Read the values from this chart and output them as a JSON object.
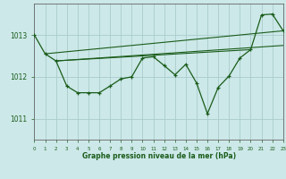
{
  "title": "Graphe pression niveau de la mer (hPa)",
  "bg_color": "#cce8e8",
  "grid_color": "#aacccc",
  "line_color": "#1a5c1a",
  "x_min": 0,
  "x_max": 23,
  "y_min": 1010.5,
  "y_max": 1013.75,
  "yticks": [
    1011,
    1012,
    1013
  ],
  "xtick_labels": [
    "0",
    "1",
    "2",
    "3",
    "4",
    "5",
    "6",
    "7",
    "8",
    "9",
    "10",
    "11",
    "12",
    "13",
    "14",
    "15",
    "16",
    "17",
    "18",
    "19",
    "20",
    "21",
    "22",
    "23"
  ],
  "series1": [
    [
      0,
      1013.0
    ],
    [
      1,
      1012.55
    ],
    [
      2,
      1012.38
    ],
    [
      3,
      1011.78
    ],
    [
      4,
      1011.62
    ],
    [
      5,
      1011.62
    ],
    [
      6,
      1011.62
    ],
    [
      7,
      1011.78
    ],
    [
      8,
      1011.95
    ],
    [
      9,
      1012.0
    ],
    [
      10,
      1012.45
    ],
    [
      11,
      1012.48
    ],
    [
      12,
      1012.27
    ],
    [
      13,
      1012.05
    ],
    [
      14,
      1012.3
    ],
    [
      15,
      1011.85
    ],
    [
      16,
      1011.12
    ],
    [
      17,
      1011.75
    ],
    [
      18,
      1012.02
    ],
    [
      19,
      1012.45
    ],
    [
      20,
      1012.65
    ],
    [
      21,
      1013.48
    ],
    [
      22,
      1013.5
    ],
    [
      23,
      1013.1
    ]
  ],
  "trend1_x": [
    1,
    23
  ],
  "trend1_y": [
    1012.55,
    1013.1
  ],
  "trend2_x": [
    2,
    20
  ],
  "trend2_y": [
    1012.38,
    1012.65
  ],
  "trend3_x": [
    2,
    23
  ],
  "trend3_y": [
    1012.38,
    1012.75
  ]
}
